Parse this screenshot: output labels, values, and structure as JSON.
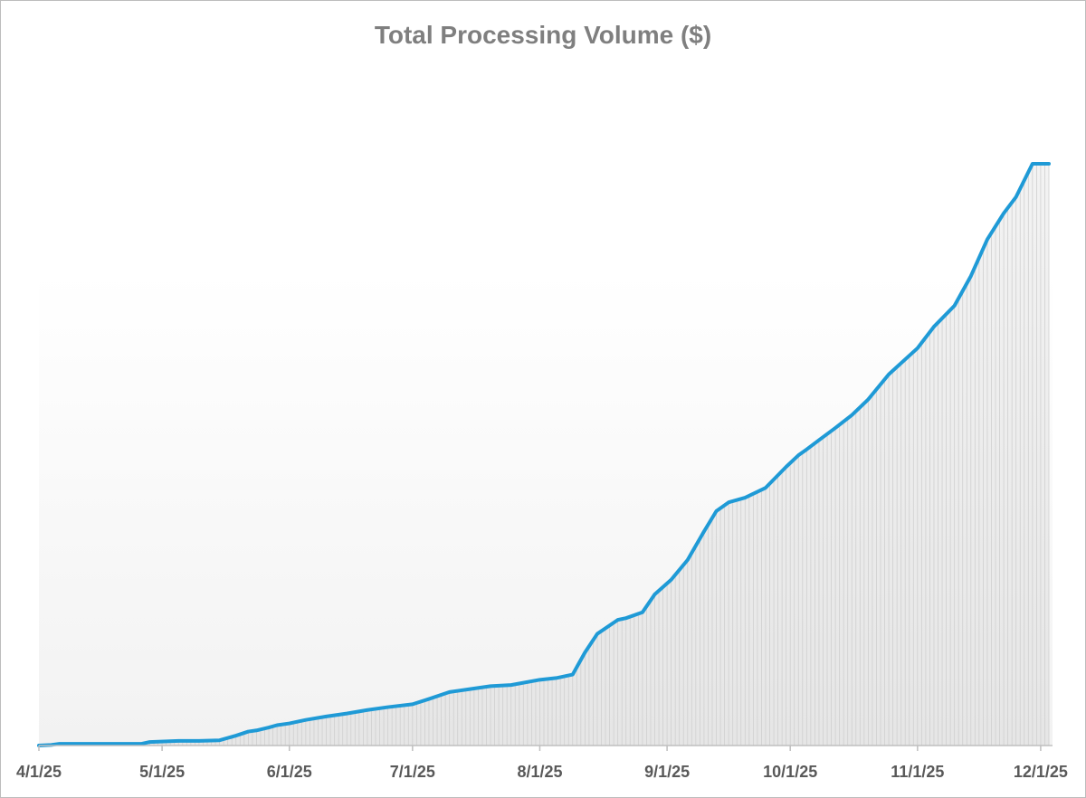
{
  "chart_data": {
    "type": "area",
    "title": "Total Processing Volume ($)",
    "xlabel": "",
    "ylabel": "",
    "x_ticks": [
      "4/1/25",
      "5/1/25",
      "6/1/25",
      "7/1/25",
      "8/1/25",
      "9/1/25",
      "10/1/25",
      "11/1/25",
      "12/1/25"
    ],
    "y_axis_shown": false,
    "grid": false,
    "legend": "none",
    "ylim": [
      0,
      100
    ],
    "series": [
      {
        "values_note": "",
        "x": [
          "2025-04-01",
          "2025-04-04",
          "2025-04-06",
          "2025-04-15",
          "2025-04-26",
          "2025-04-28",
          "2025-05-05",
          "2025-05-10",
          "2025-05-15",
          "2025-05-19",
          "2025-05-22",
          "2025-05-24",
          "2025-05-27",
          "2025-05-29",
          "2025-06-01",
          "2025-06-05",
          "2025-06-10",
          "2025-06-15",
          "2025-06-20",
          "2025-06-25",
          "2025-07-01",
          "2025-07-05",
          "2025-07-10",
          "2025-07-15",
          "2025-07-20",
          "2025-07-25",
          "2025-08-01",
          "2025-08-05",
          "2025-08-09",
          "2025-08-12",
          "2025-08-15",
          "2025-08-20",
          "2025-08-22",
          "2025-08-26",
          "2025-08-29",
          "2025-09-02",
          "2025-09-06",
          "2025-09-10",
          "2025-09-13",
          "2025-09-16",
          "2025-09-20",
          "2025-09-25",
          "2025-09-30",
          "2025-10-03",
          "2025-10-05",
          "2025-10-08",
          "2025-10-12",
          "2025-10-16",
          "2025-10-20",
          "2025-10-25",
          "2025-11-01",
          "2025-11-05",
          "2025-11-10",
          "2025-11-14",
          "2025-11-18",
          "2025-11-22",
          "2025-11-25",
          "2025-11-29",
          "2025-12-01",
          "2025-12-03"
        ],
        "values": [
          0.0,
          0.1,
          0.3,
          0.3,
          0.3,
          0.6,
          0.8,
          0.8,
          0.9,
          1.7,
          2.4,
          2.6,
          3.1,
          3.5,
          3.8,
          4.4,
          5.0,
          5.5,
          6.1,
          6.6,
          7.1,
          8.0,
          9.2,
          9.7,
          10.2,
          10.4,
          11.3,
          11.6,
          12.2,
          16.0,
          19.2,
          21.6,
          21.9,
          22.9,
          26.0,
          28.5,
          31.9,
          36.8,
          40.3,
          41.8,
          42.6,
          44.3,
          47.9,
          49.9,
          50.9,
          52.5,
          54.6,
          56.8,
          59.5,
          63.8,
          68.3,
          72.0,
          75.6,
          80.7,
          87.0,
          91.5,
          94.3,
          100.0,
          100.0,
          100.0
        ]
      }
    ]
  }
}
